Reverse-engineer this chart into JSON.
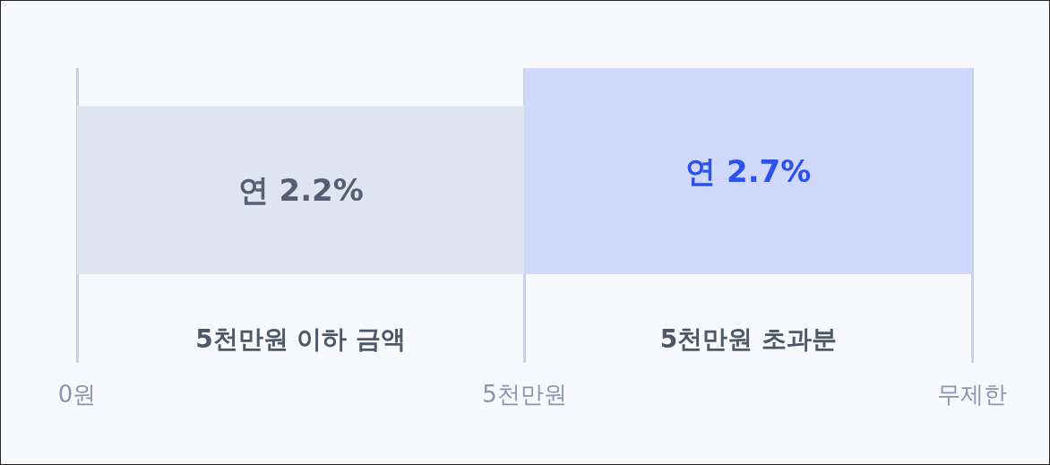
{
  "chart_data": {
    "type": "bar",
    "categories": [
      "5천만원 이하 금액",
      "5천만원 초과분"
    ],
    "values": [
      2.2,
      2.7
    ],
    "colors": [
      "#dfe5f1",
      "#d0d9fd"
    ],
    "value_labels": [
      "연 2.2%",
      "연 2.7%"
    ],
    "annotations": [
      "0원",
      "5천만원",
      "무제한"
    ],
    "tick_labels": "x",
    "grid": "x"
  }
}
